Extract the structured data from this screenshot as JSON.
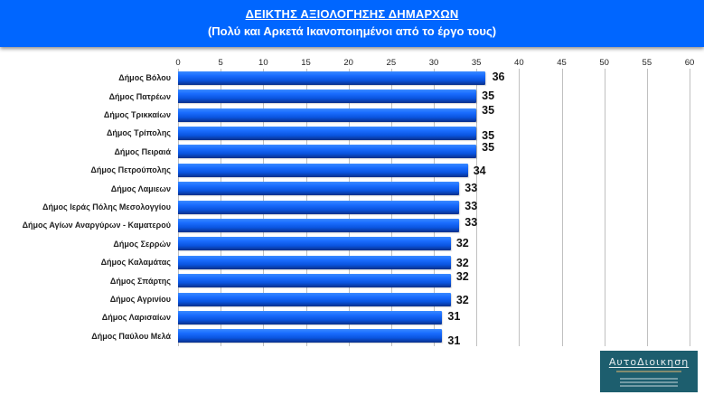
{
  "header": {
    "title": "ΔΕΙΚΤΗΣ ΑΞΙΟΛΟΓΗΣΗΣ ΔΗΜΑΡΧΩΝ",
    "subtitle": "(Πολύ και Αρκετά Ικανοποιημένοι από το έργο τους)"
  },
  "logo": {
    "brand": "ΑυτοΔιοικηση"
  },
  "colors": {
    "header_bg": "#0066ff",
    "bar": "#1a6dff",
    "bar_dark": "#0a2f8a",
    "logo_bg": "#1d5e6e"
  },
  "chart_data": {
    "type": "bar",
    "orientation": "horizontal",
    "title": "ΔΕΙΚΤΗΣ ΑΞΙΟΛΟΓΗΣΗΣ ΔΗΜΑΡΧΩΝ",
    "subtitle": "(Πολύ και Αρκετά Ικανοποιημένοι από το έργο τους)",
    "xlabel": "",
    "ylabel": "",
    "xlim": [
      0,
      60
    ],
    "ticks": [
      "0",
      "5",
      "10",
      "15",
      "20",
      "25",
      "30",
      "35",
      "40",
      "45",
      "50",
      "55",
      "60"
    ],
    "grid": true,
    "legend": null,
    "categories": [
      "Δήμος Βόλου",
      "Δήμος Πατρέων",
      "Δήμος Τρικκαίων",
      "Δήμος Τρίπολης",
      "Δήμος Πειραιά",
      "Δήμος Πετρούπολης",
      "Δήμος Λαμιεων",
      "Δήμος Ιεράς Πόλης Μεσολογγίου",
      "Δήμος Αγίων Αναργύρων - Καματερού",
      "Δήμος Σερρών",
      "Δήμος Καλαμάτας",
      "Δήμος Σπάρτης",
      "Δήμος Αγρινίου",
      "Δήμος Λαρισαίων",
      "Δήμος Παύλου Μελά"
    ],
    "values": [
      36,
      35,
      35,
      35,
      35,
      34,
      33,
      33,
      33,
      32,
      32,
      32,
      32,
      31,
      31
    ],
    "value_labels": [
      "36",
      "35",
      "35",
      "35",
      "35",
      "34",
      "33",
      "33",
      "33",
      "32",
      "32",
      "32",
      "32",
      "31",
      "31"
    ]
  }
}
